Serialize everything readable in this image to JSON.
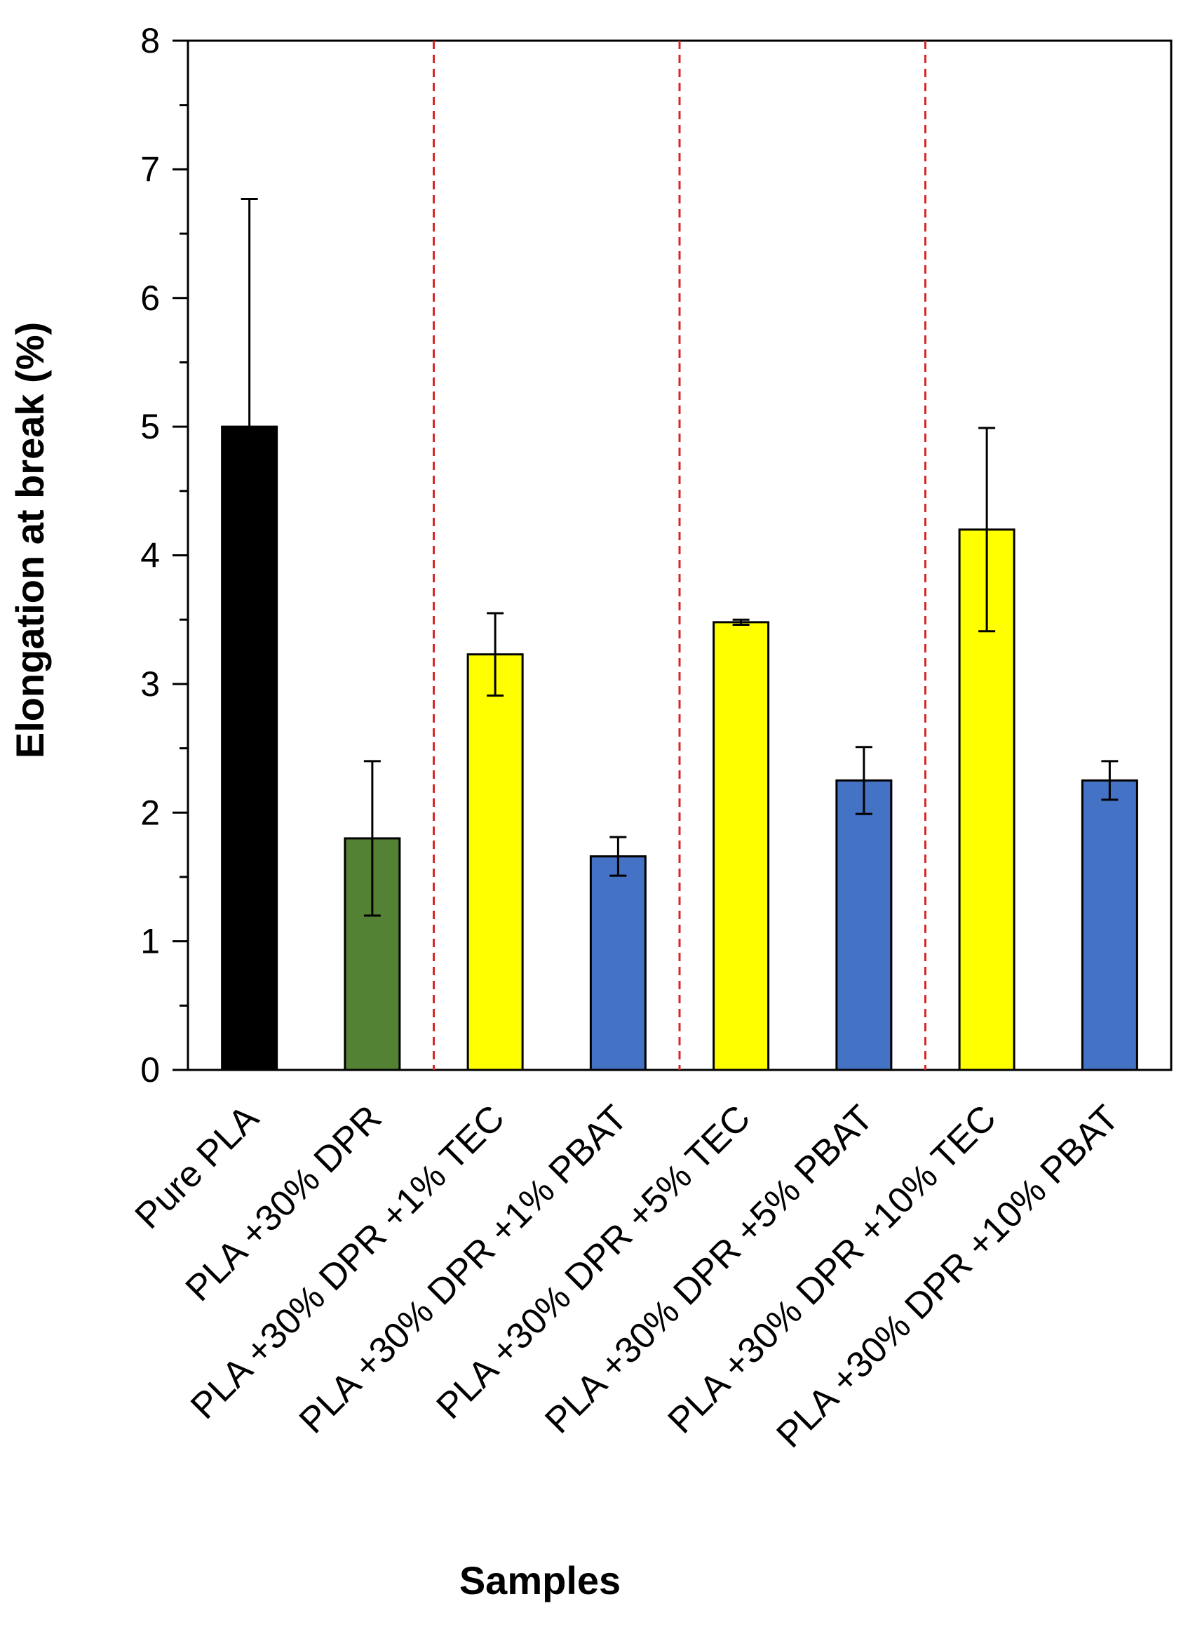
{
  "chart_data": {
    "type": "bar",
    "title": "",
    "xlabel": "Samples",
    "ylabel": "Elongation at break  (%)",
    "ylim": [
      0,
      8
    ],
    "yticks": [
      0,
      1,
      2,
      3,
      4,
      5,
      6,
      7,
      8
    ],
    "yminor_step": 0.5,
    "grid": false,
    "legend": "none",
    "categories": [
      "Pure PLA",
      "PLA +30% DPR",
      "PLA +30% DPR +1% TEC",
      "PLA +30% DPR +1% PBAT",
      "PLA +30% DPR +5% TEC",
      "PLA +30% DPR +5% PBAT",
      "PLA +30% DPR +10% TEC",
      "PLA +30% DPR +10% PBAT"
    ],
    "values": [
      5.0,
      1.8,
      3.23,
      1.66,
      3.48,
      2.25,
      4.2,
      2.25
    ],
    "errors": [
      1.77,
      0.6,
      0.32,
      0.15,
      0.02,
      0.26,
      0.79,
      0.15
    ],
    "bar_colors": [
      "#000000",
      "#548235",
      "#ffff00",
      "#4472c4",
      "#ffff00",
      "#4472c4",
      "#ffff00",
      "#4472c4"
    ],
    "group_separators_after_index": [
      1,
      3,
      5
    ],
    "separator_color": "#d62728"
  }
}
